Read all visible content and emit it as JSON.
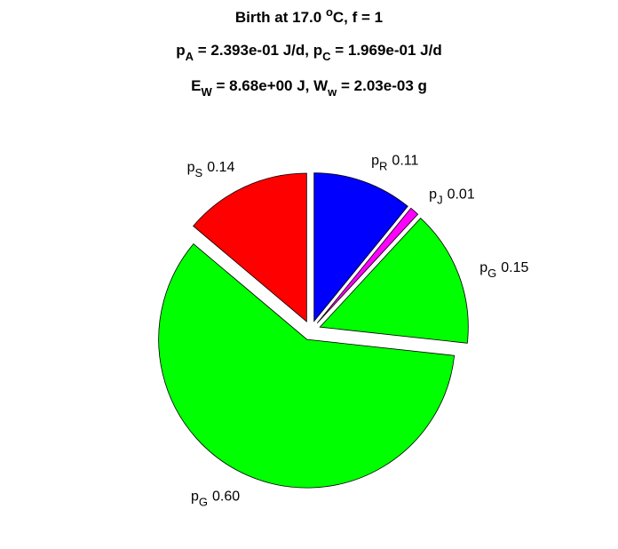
{
  "chart_data": {
    "type": "pie",
    "title": [
      [
        {
          "text": "Birth at 17.0 "
        },
        {
          "sup": "o"
        },
        {
          "text": "C, f = 1"
        }
      ],
      [
        {
          "text": "p"
        },
        {
          "sub": "A"
        },
        {
          "text": " = 2.393e-01 J/d, p"
        },
        {
          "sub": "C"
        },
        {
          "text": " = 1.969e-01 J/d"
        }
      ],
      [
        {
          "text": "E"
        },
        {
          "sub": "W"
        },
        {
          "text": " = 8.68e+00 J, W"
        },
        {
          "sub": "w"
        },
        {
          "text": " = 2.03e-03 g"
        }
      ]
    ],
    "labels": [
      {
        "text": "p",
        "sub": "R"
      },
      {
        "text": "p",
        "sub": "J"
      },
      {
        "text": "p",
        "sub": "G"
      },
      {
        "text": "p",
        "sub": "G"
      },
      {
        "text": "p",
        "sub": "S"
      }
    ],
    "values": [
      0.11,
      0.01,
      0.15,
      0.6,
      0.14
    ],
    "value_labels": [
      "0.11",
      "0.01",
      "0.15",
      "0.60",
      "0.14"
    ],
    "colors": [
      "#0000ff",
      "#ff00ff",
      "#00ff00",
      "#00ff00",
      "#ff0000"
    ],
    "explode": [
      true,
      true,
      true,
      true,
      true
    ]
  }
}
